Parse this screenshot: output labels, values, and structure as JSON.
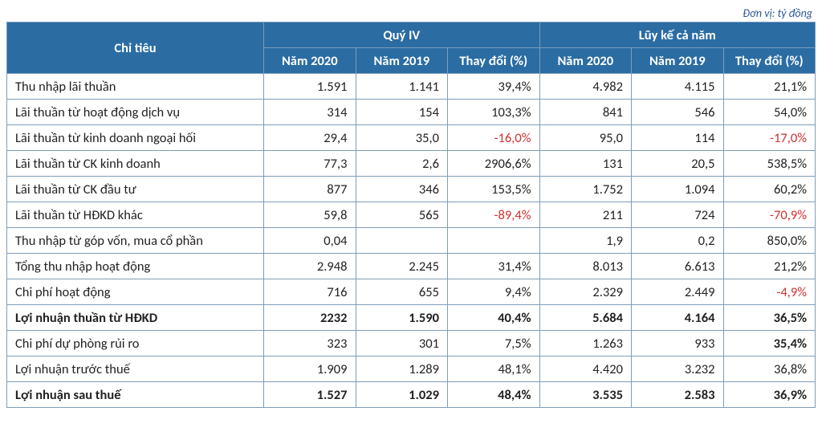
{
  "unit_label": "Đơn vị: tỷ đồng",
  "header": {
    "metric": "Chỉ tiêu",
    "group_q4": "Quý IV",
    "group_year": "Lũy kế cả năm",
    "y2020": "Năm 2020",
    "y2019": "Năm 2019",
    "change": "Thay đổi (%)"
  },
  "table": {
    "columns": [
      "label",
      "q4_2020",
      "q4_2019",
      "q4_chg",
      "y_2020",
      "y_2019",
      "y_chg"
    ],
    "rows": [
      {
        "bold": false,
        "cells": {
          "label": "Thu nhập lãi thuần",
          "q4_2020": "1.591",
          "q4_2019": "1.141",
          "q4_chg": {
            "v": "39,4%",
            "neg": false
          },
          "y_2020": "4.982",
          "y_2019": "4.115",
          "y_chg": {
            "v": "21,1%",
            "neg": false
          }
        }
      },
      {
        "bold": false,
        "cells": {
          "label": "Lãi thuần từ hoạt động dịch vụ",
          "q4_2020": "314",
          "q4_2019": "154",
          "q4_chg": {
            "v": "103,3%",
            "neg": false
          },
          "y_2020": "841",
          "y_2019": "546",
          "y_chg": {
            "v": "54,0%",
            "neg": false
          }
        }
      },
      {
        "bold": false,
        "cells": {
          "label": "Lãi thuần từ kinh doanh ngoại hối",
          "q4_2020": "29,4",
          "q4_2019": "35,0",
          "q4_chg": {
            "v": "-16,0%",
            "neg": true
          },
          "y_2020": "95,0",
          "y_2019": "114",
          "y_chg": {
            "v": "-17,0%",
            "neg": true
          }
        }
      },
      {
        "bold": false,
        "cells": {
          "label": "Lãi thuần từ CK kinh doanh",
          "q4_2020": "77,3",
          "q4_2019": "2,6",
          "q4_chg": {
            "v": "2906,6%",
            "neg": false
          },
          "y_2020": "131",
          "y_2019": "20,5",
          "y_chg": {
            "v": "538,5%",
            "neg": false
          }
        }
      },
      {
        "bold": false,
        "cells": {
          "label": "Lãi thuần từ CK đầu tư",
          "q4_2020": "877",
          "q4_2019": "346",
          "q4_chg": {
            "v": "153,5%",
            "neg": false
          },
          "y_2020": "1.752",
          "y_2019": "1.094",
          "y_chg": {
            "v": "60,2%",
            "neg": false
          }
        }
      },
      {
        "bold": false,
        "cells": {
          "label": "Lãi thuần từ HĐKD khác",
          "q4_2020": "59,8",
          "q4_2019": "565",
          "q4_chg": {
            "v": "-89,4%",
            "neg": true
          },
          "y_2020": "211",
          "y_2019": "724",
          "y_chg": {
            "v": "-70,9%",
            "neg": true
          }
        }
      },
      {
        "bold": false,
        "cells": {
          "label": "Thu nhập từ góp vốn, mua cổ phần",
          "q4_2020": "0,04",
          "q4_2019": "",
          "q4_chg": {
            "v": "",
            "neg": false
          },
          "y_2020": "1,9",
          "y_2019": "0,2",
          "y_chg": {
            "v": "850,0%",
            "neg": false
          }
        }
      },
      {
        "bold": false,
        "cells": {
          "label": "Tổng thu nhập hoạt động",
          "q4_2020": "2.948",
          "q4_2019": "2.245",
          "q4_chg": {
            "v": "31,4%",
            "neg": false
          },
          "y_2020": "8.013",
          "y_2019": "6.613",
          "y_chg": {
            "v": "21,2%",
            "neg": false
          }
        }
      },
      {
        "bold": false,
        "cells": {
          "label": "Chi phí hoạt động",
          "q4_2020": "716",
          "q4_2019": "655",
          "q4_chg": {
            "v": "9,4%",
            "neg": false
          },
          "y_2020": "2.329",
          "y_2019": "2.449",
          "y_chg": {
            "v": "-4,9%",
            "neg": true
          }
        }
      },
      {
        "bold": true,
        "cells": {
          "label": "Lợi nhuận thuần từ HĐKD",
          "q4_2020": "2232",
          "q4_2019": "1.590",
          "q4_chg": {
            "v": "40,4%",
            "neg": false
          },
          "y_2020": "5.684",
          "y_2019": "4.164",
          "y_chg": {
            "v": "36,5%",
            "neg": false
          }
        }
      },
      {
        "bold": false,
        "cells": {
          "label": "Chi phí dự phòng rủi ro",
          "q4_2020": "323",
          "q4_2019": "301",
          "q4_chg": {
            "v": "7,5%",
            "neg": false
          },
          "y_2020": "1.263",
          "y_2019": "933",
          "y_chg": {
            "v": "35,4%",
            "neg": false,
            "bold": true
          }
        }
      },
      {
        "bold": false,
        "cells": {
          "label": "Lợi nhuận trước thuế",
          "q4_2020": "1.909",
          "q4_2019": "1.289",
          "q4_chg": {
            "v": "48,1%",
            "neg": false
          },
          "y_2020": "4.420",
          "y_2019": "3.232",
          "y_chg": {
            "v": "36,8%",
            "neg": false
          }
        }
      },
      {
        "bold": true,
        "cells": {
          "label": "Lợi nhuận sau thuế",
          "q4_2020": "1.527",
          "q4_2019": "1.029",
          "q4_chg": {
            "v": "48,4%",
            "neg": false
          },
          "y_2020": "3.535",
          "y_2019": "2.583",
          "y_chg": {
            "v": "36,9%",
            "neg": false
          }
        }
      }
    ]
  },
  "style": {
    "header_bg": "#2b6ca3",
    "header_fg": "#ffffff",
    "border_color": "#7f9db9",
    "negative_color": "#d03030",
    "font_family": "Calibri",
    "font_size_pt": 12
  }
}
